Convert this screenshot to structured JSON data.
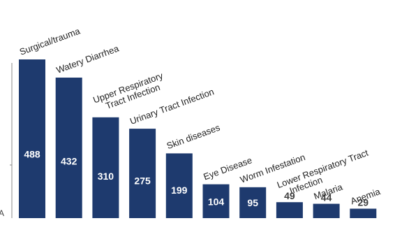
{
  "chart_data": {
    "type": "bar",
    "title": "",
    "xlabel": "",
    "ylabel": "",
    "ylim": [
      0,
      488
    ],
    "grid": false,
    "legend": "none",
    "colors": {
      "bar": "#1e3a6e",
      "value_label_inside": "#ffffff",
      "value_label_outside": "#404040",
      "category_label": "#222222",
      "axis": "#888888"
    },
    "categories": [
      "Surgical/trauma",
      "Watery Diarrhea",
      "Upper Respiratory\nTract Infection",
      "Urinary Tract Infection",
      "Skin diseases",
      "Eye Disease",
      "Worm Infestation",
      "Lower Respiratory Tract\nInfection",
      "Malaria",
      "Anemia"
    ],
    "values": [
      488,
      432,
      310,
      275,
      199,
      104,
      95,
      49,
      44,
      29
    ],
    "value_labels": [
      "488",
      "432",
      "310",
      "275",
      "199",
      "104",
      "95",
      "49",
      "44",
      "29"
    ],
    "edge_fragment": "A"
  }
}
